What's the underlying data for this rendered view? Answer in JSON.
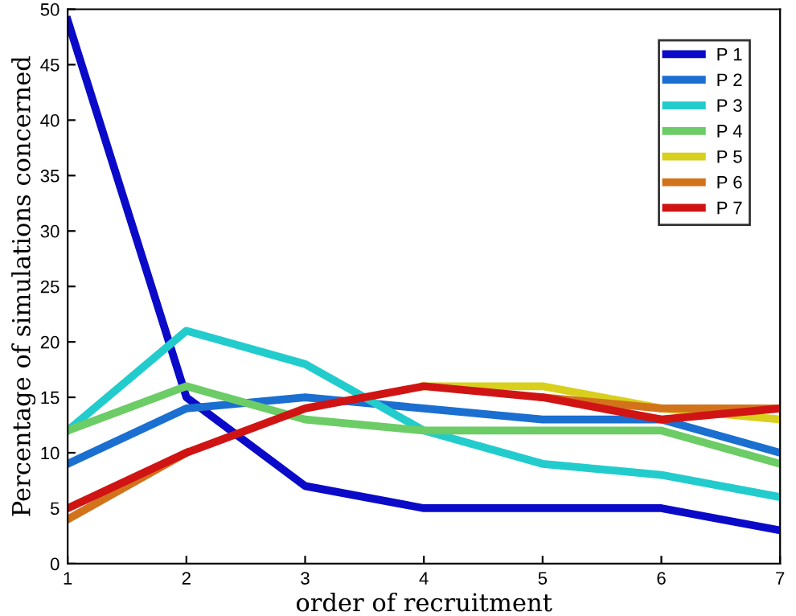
{
  "chart_data": {
    "type": "line",
    "xlabel": "order of recruitment",
    "ylabel": "Percentage of simulations concerned",
    "x": [
      1,
      2,
      3,
      4,
      5,
      6,
      7
    ],
    "xlim": [
      1,
      7
    ],
    "xticks": [
      1,
      2,
      3,
      4,
      5,
      6,
      7
    ],
    "ylim": [
      0,
      50
    ],
    "yticks": [
      0,
      5,
      10,
      15,
      20,
      25,
      30,
      35,
      40,
      45,
      50
    ],
    "grid": false,
    "legend": "top right",
    "marker": "none",
    "line_style": "solid",
    "series": [
      {
        "name": "P 1",
        "color": "#0a0ac8",
        "values": [
          49,
          15,
          7,
          5,
          5,
          5,
          3
        ]
      },
      {
        "name": "P 2",
        "color": "#1a6fd0",
        "values": [
          9,
          14,
          15,
          14,
          13,
          13,
          10
        ]
      },
      {
        "name": "P 3",
        "color": "#22cccc",
        "values": [
          12,
          21,
          18,
          12,
          9,
          8,
          6
        ]
      },
      {
        "name": "P 4",
        "color": "#6ccc66",
        "values": [
          12,
          16,
          13,
          12,
          12,
          12,
          9
        ]
      },
      {
        "name": "P 5",
        "color": "#d8d01c",
        "values": [
          null,
          null,
          null,
          16,
          16,
          14,
          13
        ]
      },
      {
        "name": "P 6",
        "color": "#d2731c",
        "values": [
          4,
          10,
          null,
          null,
          15,
          14,
          14
        ]
      },
      {
        "name": "P 7",
        "color": "#d01414",
        "values": [
          5,
          10,
          14,
          16,
          15,
          13,
          14
        ]
      }
    ]
  }
}
